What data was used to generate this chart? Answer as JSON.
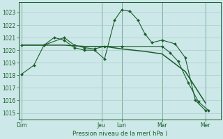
{
  "bg_color": "#cce8e8",
  "grid_color": "#aacccc",
  "line_color": "#1a5c2a",
  "xlabel": "Pression niveau de la mer( hPa )",
  "ylim": [
    1014.5,
    1023.8
  ],
  "yticks": [
    1015,
    1016,
    1017,
    1018,
    1019,
    1020,
    1021,
    1022,
    1023
  ],
  "xlim": [
    0,
    20
  ],
  "day_labels": [
    "Dim",
    "Jeu",
    "Lun",
    "Mar",
    "Mer"
  ],
  "day_positions": [
    0.3,
    8.2,
    10.2,
    14.2,
    18.5
  ],
  "vline_positions": [
    0.3,
    8.2,
    10.2,
    14.2,
    18.5
  ],
  "line1_x": [
    0.3,
    1.5,
    2.5,
    3.5,
    4.5,
    5.5,
    6.5,
    7.5,
    8.5,
    9.5,
    10.2,
    11.0,
    11.8,
    12.5,
    13.2,
    14.2,
    15.5,
    16.5,
    17.5,
    18.5
  ],
  "line1_y": [
    1018.1,
    1018.8,
    1020.4,
    1021.0,
    1020.8,
    1020.2,
    1020.0,
    1020.0,
    1019.3,
    1022.4,
    1023.2,
    1023.1,
    1022.4,
    1021.3,
    1020.6,
    1020.8,
    1020.5,
    1019.4,
    1016.0,
    1015.2
  ],
  "line2_x": [
    0.3,
    2.5,
    4.5,
    5.5,
    6.5,
    7.5,
    8.5,
    10.2,
    14.2,
    15.0,
    15.8,
    16.8,
    17.8,
    18.8
  ],
  "line2_y": [
    1020.4,
    1020.4,
    1021.0,
    1020.4,
    1020.2,
    1020.1,
    1020.3,
    1020.3,
    1020.3,
    1019.8,
    1019.1,
    1017.4,
    1015.9,
    1015.2
  ],
  "line3_x": [
    0.3,
    2.5,
    4.5,
    6.5,
    8.5,
    10.2,
    12.5,
    14.2,
    16.5,
    18.5
  ],
  "line3_y": [
    1020.4,
    1020.4,
    1020.4,
    1020.3,
    1020.3,
    1020.1,
    1019.9,
    1019.7,
    1018.3,
    1015.8
  ]
}
